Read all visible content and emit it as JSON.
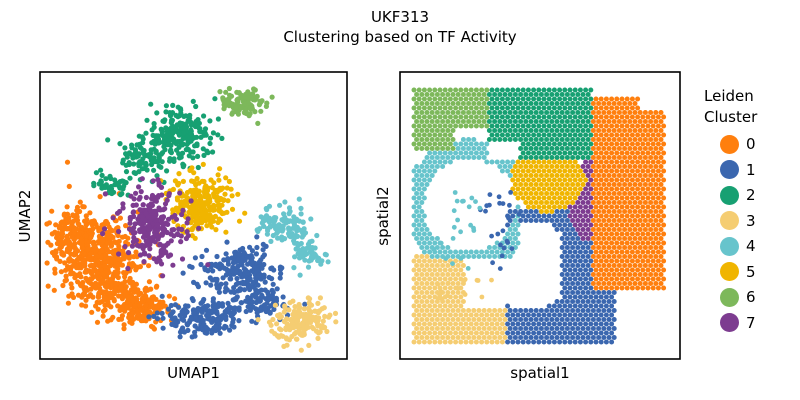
{
  "title": "UKF313",
  "subtitle": "Clustering based on TF Activity",
  "chart_data": [
    {
      "type": "scatter",
      "panel": "umap",
      "xlabel": "UMAP1",
      "ylabel": "UMAP2",
      "ticks": "hidden",
      "grid": false
    },
    {
      "type": "scatter",
      "panel": "spatial",
      "xlabel": "spatial1",
      "ylabel": "spatial2",
      "ticks": "hidden",
      "grid": false
    }
  ],
  "legend": {
    "title_line1": "Leiden",
    "title_line2": "Cluster",
    "placement": "right",
    "items": [
      {
        "label": "0",
        "color": "#ff7f0e"
      },
      {
        "label": "1",
        "color": "#3b67af"
      },
      {
        "label": "2",
        "color": "#17a072"
      },
      {
        "label": "3",
        "color": "#f5cd72"
      },
      {
        "label": "4",
        "color": "#67c4cc"
      },
      {
        "label": "5",
        "color": "#f0b500"
      },
      {
        "label": "6",
        "color": "#7db85b"
      },
      {
        "label": "7",
        "color": "#7d3c90"
      }
    ]
  }
}
